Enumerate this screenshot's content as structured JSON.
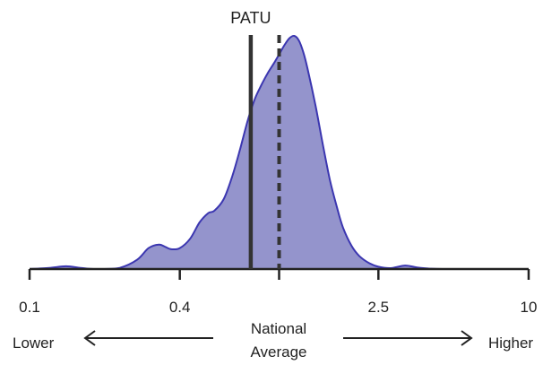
{
  "chart_data": {
    "type": "area",
    "scale": "log",
    "x_ticks": [
      {
        "value": 0.1,
        "label": "0.1"
      },
      {
        "value": 0.4,
        "label": "0.4"
      },
      {
        "value": 1,
        "label": ""
      },
      {
        "value": 2.5,
        "label": "2.5"
      },
      {
        "value": 10,
        "label": "10"
      }
    ],
    "xlim": [
      0.1,
      10
    ],
    "density": {
      "x": [
        0.1,
        0.12,
        0.14,
        0.16,
        0.18,
        0.2,
        0.23,
        0.27,
        0.3,
        0.33,
        0.35,
        0.37,
        0.4,
        0.44,
        0.48,
        0.52,
        0.55,
        0.6,
        0.65,
        0.7,
        0.75,
        0.8,
        0.85,
        0.9,
        0.95,
        1.0,
        1.05,
        1.1,
        1.15,
        1.2,
        1.25,
        1.3,
        1.4,
        1.5,
        1.6,
        1.7,
        1.8,
        1.95,
        2.1,
        2.3,
        2.5,
        2.8,
        3.2,
        3.6,
        4.0,
        4.5,
        5.5,
        7.0,
        10.0
      ],
      "y": [
        0.0,
        0.005,
        0.012,
        0.005,
        0.0,
        0.0,
        0.005,
        0.04,
        0.09,
        0.105,
        0.095,
        0.085,
        0.09,
        0.13,
        0.2,
        0.24,
        0.25,
        0.3,
        0.4,
        0.52,
        0.64,
        0.73,
        0.79,
        0.84,
        0.88,
        0.92,
        0.96,
        0.99,
        1.0,
        0.98,
        0.93,
        0.86,
        0.7,
        0.53,
        0.38,
        0.27,
        0.18,
        0.1,
        0.055,
        0.025,
        0.01,
        0.004,
        0.015,
        0.006,
        0.002,
        0.0,
        0.0,
        0.0,
        0.0
      ]
    },
    "markers": [
      {
        "name": "PATU",
        "x": 0.77,
        "style": "solid",
        "label": "PATU"
      },
      {
        "name": "national-average",
        "x": 1.0,
        "style": "dashed",
        "label": ""
      }
    ],
    "direction_labels": {
      "left": "Lower",
      "center": [
        "National",
        "Average"
      ],
      "right": "Higher"
    },
    "colors": {
      "fill": "#9494cc",
      "stroke": "#3b36b0",
      "axis": "#222222",
      "marker": "#333333"
    }
  }
}
